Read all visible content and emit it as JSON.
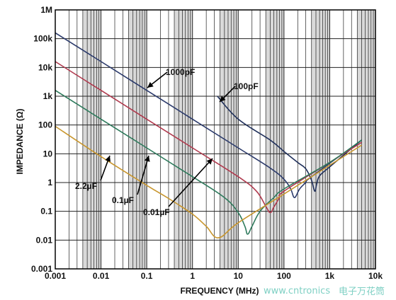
{
  "chart_data": {
    "type": "line",
    "xlabel": "FREQUENCY (MHz)",
    "ylabel": "IMPEDANCE (Ω)",
    "x_scale": "log",
    "y_scale": "log",
    "xlim": [
      0.001,
      10000
    ],
    "ylim": [
      0.001,
      1000000
    ],
    "x_ticks": [
      {
        "value": 0.001,
        "label": "0.001"
      },
      {
        "value": 0.01,
        "label": "0.01"
      },
      {
        "value": 0.1,
        "label": "0.1"
      },
      {
        "value": 1,
        "label": "1"
      },
      {
        "value": 10,
        "label": "10"
      },
      {
        "value": 100,
        "label": "100"
      },
      {
        "value": 1000,
        "label": "1k"
      },
      {
        "value": 10000,
        "label": "10k"
      }
    ],
    "y_ticks": [
      {
        "value": 1000000,
        "label": "1M"
      },
      {
        "value": 100000,
        "label": "100k"
      },
      {
        "value": 10000,
        "label": "10k"
      },
      {
        "value": 1000,
        "label": "1k"
      },
      {
        "value": 100,
        "label": "100"
      },
      {
        "value": 10,
        "label": "10"
      },
      {
        "value": 1,
        "label": "1"
      },
      {
        "value": 0.1,
        "label": "0.1"
      },
      {
        "value": 0.01,
        "label": "0.01"
      },
      {
        "value": 0.001,
        "label": "0.001"
      }
    ],
    "grid": true,
    "series": [
      {
        "name": "1000pF",
        "color": "#2b3a6b",
        "x": [
          0.001,
          0.01,
          0.1,
          1,
          10,
          50,
          100,
          140,
          170,
          220,
          300,
          400,
          5000
        ],
        "y": [
          160000,
          16000,
          1600,
          160,
          16,
          3.2,
          1.3,
          0.6,
          0.3,
          0.6,
          1.0,
          1.6,
          30
        ]
      },
      {
        "name": "100pF",
        "color": "#1f2f5a",
        "x": [
          3.5,
          10,
          50,
          100,
          200,
          300,
          400,
          470,
          520,
          600,
          1000,
          5000
        ],
        "y": [
          1000,
          160,
          30,
          12,
          5,
          3,
          1.2,
          0.5,
          0.9,
          1.7,
          3.5,
          30
        ]
      },
      {
        "name": "0.01µF",
        "color": "#b03a4e",
        "x": [
          0.001,
          0.01,
          0.1,
          1,
          10,
          25,
          40,
          50,
          60,
          80,
          100,
          1000,
          5000
        ],
        "y": [
          16000,
          1600,
          160,
          16,
          1.6,
          0.5,
          0.15,
          0.09,
          0.14,
          0.3,
          0.5,
          5,
          25
        ]
      },
      {
        "name": "0.1µF",
        "color": "#2e7a5c",
        "x": [
          0.001,
          0.01,
          0.1,
          1,
          5,
          10,
          14,
          16,
          20,
          30,
          60,
          100,
          1000,
          5000
        ],
        "y": [
          1600,
          160,
          16,
          1.6,
          0.3,
          0.09,
          0.03,
          0.016,
          0.03,
          0.1,
          0.3,
          0.6,
          5,
          30
        ]
      },
      {
        "name": "2.2µF",
        "color": "#c8962e",
        "x": [
          0.001,
          0.01,
          0.1,
          0.3,
          1,
          2,
          3.7,
          10,
          100,
          1000,
          5000
        ],
        "y": [
          90,
          8,
          0.8,
          0.28,
          0.08,
          0.03,
          0.012,
          0.04,
          0.4,
          4,
          20
        ]
      }
    ],
    "annotations": [
      {
        "text": "1000pF",
        "series": "1000pF",
        "x": 0.2,
        "y": 3000
      },
      {
        "text": "100pF",
        "series": "100pF",
        "x": 150,
        "y": 5000
      },
      {
        "text": "2.2µF",
        "series": "2.2µF",
        "x": 0.012,
        "y": 6
      },
      {
        "text": "0.1µF",
        "series": "0.1µF",
        "x": 0.12,
        "y": 4
      },
      {
        "text": "0.01µF",
        "series": "0.01µF",
        "x": 2.5,
        "y": 6
      }
    ]
  },
  "watermark": {
    "text_en": "www.cntronics",
    "text_cn": "电子万花筒",
    "color": "#7fd0c4"
  }
}
